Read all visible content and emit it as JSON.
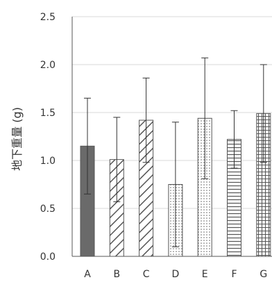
{
  "chart_data": {
    "type": "bar",
    "title": "",
    "xlabel": "",
    "ylabel": "地下重量 (g)",
    "ylim": [
      0,
      2.5
    ],
    "yticks": [
      "0.0",
      "0.5",
      "1.0",
      "1.5",
      "2.0",
      "2.5"
    ],
    "grid": true,
    "categories": [
      "A",
      "B",
      "C",
      "D",
      "E",
      "F",
      "G"
    ],
    "values": [
      1.15,
      1.01,
      1.42,
      0.75,
      1.44,
      1.22,
      1.49
    ],
    "errors": [
      0.5,
      0.44,
      0.44,
      0.65,
      0.63,
      0.3,
      0.51
    ],
    "patterns": [
      "solid",
      "diagonal",
      "diagonal",
      "dots",
      "dots",
      "horizontal",
      "grid"
    ]
  }
}
